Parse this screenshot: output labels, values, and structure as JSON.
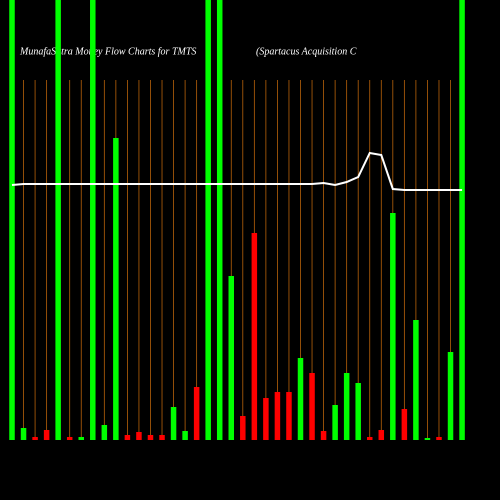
{
  "chart_data": {
    "type": "bar",
    "title": "MunafaSutra  Money Flow  Charts for TMTS",
    "subtitle": "(Spartacus Acquisition  C",
    "categories": [
      null,
      null,
      null,
      null,
      null,
      null,
      null,
      null,
      null,
      null,
      null,
      null,
      null,
      null,
      null,
      null,
      null,
      null,
      null,
      null,
      null,
      null,
      null,
      null,
      null,
      null,
      null,
      null,
      null,
      null,
      null,
      null,
      null,
      null,
      null,
      null,
      null,
      null,
      null,
      null
    ],
    "values": [
      440,
      12,
      3,
      10,
      440,
      3,
      3,
      440,
      15,
      302,
      5,
      8,
      5,
      5,
      33,
      9,
      53,
      440,
      440,
      164,
      24,
      207,
      42,
      48,
      48,
      82,
      67,
      9,
      35,
      67,
      57,
      3,
      10,
      227,
      31,
      120,
      2,
      3,
      88,
      440
    ],
    "colors": [
      "#00ff00",
      "#00ff00",
      "#ff0000",
      "#ff0000",
      "#00ff00",
      "#ff0000",
      "#00ff00",
      "#00ff00",
      "#00ff00",
      "#00ff00",
      "#ff0000",
      "#ff0000",
      "#ff0000",
      "#ff0000",
      "#00ff00",
      "#00ff00",
      "#ff0000",
      "#00ff00",
      "#00ff00",
      "#00ff00",
      "#ff0000",
      "#ff0000",
      "#ff0000",
      "#ff0000",
      "#ff0000",
      "#00ff00",
      "#ff0000",
      "#ff0000",
      "#00ff00",
      "#00ff00",
      "#00ff00",
      "#ff0000",
      "#ff0000",
      "#00ff00",
      "#ff0000",
      "#00ff00",
      "#00ff00",
      "#ff0000",
      "#00ff00",
      "#00ff00"
    ],
    "line_values": [
      255,
      256,
      256,
      256,
      256,
      256,
      256,
      256,
      256,
      256,
      256,
      256,
      256,
      256,
      256,
      256,
      256,
      256,
      256,
      256,
      256,
      256,
      256,
      256,
      256,
      256,
      256,
      257,
      255,
      258,
      263,
      287,
      285,
      251,
      250,
      250,
      250,
      250,
      250,
      250
    ],
    "line_color": "#ffffff",
    "grid_color": "#b8620a",
    "ylim": [
      0,
      440
    ],
    "grid": true
  }
}
